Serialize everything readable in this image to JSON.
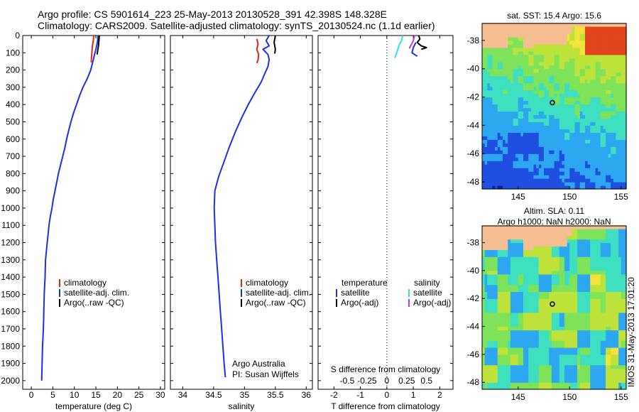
{
  "header": {
    "line1": "Argo profile: CS 5901614_223 25-May-2013 20130528_391 42.398S 148.328E",
    "line2": "Climatology: CARS2009. Satellite-adjusted climatology: synTS_20130524.nc (1.1d earlier)"
  },
  "timestamp": "IMOS 31-May-2013 17:01:20",
  "colors": {
    "climatology": "#e8211b",
    "satellite": "#1e2ee6",
    "argo": "#000000",
    "sal_satellite": "#35e0e6",
    "sal_argo": "#c23ad8",
    "land": "#f6bf92"
  },
  "chart_data": [
    {
      "type": "line",
      "panel": "temperature",
      "xlabel": "temperature (deg C)",
      "xlim": [
        -2,
        31
      ],
      "xticks": [
        0,
        5,
        10,
        15,
        20,
        25,
        30
      ],
      "ylim": [
        2050,
        0
      ],
      "yticks": [
        0,
        100,
        200,
        300,
        400,
        500,
        600,
        700,
        800,
        900,
        1000,
        1100,
        1200,
        1300,
        1400,
        1500,
        1600,
        1700,
        1800,
        1900,
        2000
      ],
      "legend": [
        "climatology",
        "satellite-adj. clim.",
        "Argo(..raw -QC)"
      ],
      "series": [
        {
          "name": "climatology",
          "color": "#e8211b",
          "points": [
            [
              14.5,
              0
            ],
            [
              14.4,
              30
            ],
            [
              14.2,
              60
            ],
            [
              14.1,
              90
            ],
            [
              14.0,
              120
            ],
            [
              13.9,
              155
            ]
          ]
        },
        {
          "name": "satellite-adj. clim.",
          "color": "#1e2ee6",
          "points": [
            [
              15.5,
              0
            ],
            [
              15.4,
              30
            ],
            [
              15.2,
              60
            ],
            [
              14.9,
              90
            ],
            [
              14.6,
              120
            ],
            [
              14.2,
              160
            ],
            [
              13.8,
              200
            ],
            [
              13.0,
              250
            ],
            [
              12.0,
              300
            ],
            [
              11.2,
              350
            ],
            [
              10.5,
              400
            ],
            [
              9.8,
              450
            ],
            [
              9.2,
              500
            ],
            [
              8.7,
              550
            ],
            [
              8.2,
              600
            ],
            [
              7.8,
              650
            ],
            [
              7.3,
              700
            ],
            [
              6.8,
              750
            ],
            [
              6.3,
              800
            ],
            [
              5.9,
              850
            ],
            [
              5.5,
              900
            ],
            [
              5.1,
              950
            ],
            [
              4.8,
              1000
            ],
            [
              4.4,
              1050
            ],
            [
              4.1,
              1100
            ],
            [
              3.9,
              1150
            ],
            [
              3.7,
              1200
            ],
            [
              3.5,
              1250
            ],
            [
              3.3,
              1300
            ],
            [
              3.2,
              1400
            ],
            [
              3.0,
              1500
            ],
            [
              2.9,
              1600
            ],
            [
              2.8,
              1700
            ],
            [
              2.6,
              1800
            ],
            [
              2.5,
              1900
            ],
            [
              2.4,
              2000
            ]
          ]
        },
        {
          "name": "Argo(..raw -QC)",
          "color": "#000000",
          "points": [
            [
              15.8,
              0
            ],
            [
              15.7,
              30
            ],
            [
              15.6,
              60
            ],
            [
              15.4,
              90
            ],
            [
              15.3,
              110
            ]
          ]
        }
      ]
    },
    {
      "type": "line",
      "panel": "salinity",
      "xlabel": "salinity",
      "xlim": [
        33.8,
        36.1
      ],
      "xticks": [
        34,
        34.5,
        35,
        35.5,
        36
      ],
      "ylim": [
        2050,
        0
      ],
      "legend": [
        "climatology",
        "satellite-adj. clim.",
        "Argo(..raw -QC)"
      ],
      "annotation": [
        "Argo Australia",
        "PI: Susan Wijffels"
      ],
      "series": [
        {
          "name": "climatology",
          "color": "#e8211b",
          "points": [
            [
              35.2,
              20
            ],
            [
              35.22,
              50
            ],
            [
              35.2,
              80
            ],
            [
              35.23,
              110
            ],
            [
              35.22,
              140
            ],
            [
              35.2,
              160
            ]
          ]
        },
        {
          "name": "satellite-adj. clim.",
          "color": "#1e2ee6",
          "points": [
            [
              35.4,
              0
            ],
            [
              35.35,
              30
            ],
            [
              35.4,
              60
            ],
            [
              35.3,
              80
            ],
            [
              35.38,
              110
            ],
            [
              35.4,
              140
            ],
            [
              35.38,
              180
            ],
            [
              35.33,
              220
            ],
            [
              35.27,
              270
            ],
            [
              35.17,
              330
            ],
            [
              35.06,
              400
            ],
            [
              34.95,
              480
            ],
            [
              34.85,
              560
            ],
            [
              34.75,
              650
            ],
            [
              34.65,
              750
            ],
            [
              34.58,
              820
            ],
            [
              34.52,
              900
            ],
            [
              34.51,
              1000
            ],
            [
              34.52,
              1100
            ],
            [
              34.53,
              1200
            ],
            [
              34.55,
              1300
            ],
            [
              34.57,
              1400
            ],
            [
              34.59,
              1500
            ],
            [
              34.61,
              1600
            ],
            [
              34.63,
              1700
            ],
            [
              34.65,
              1800
            ],
            [
              34.67,
              1900
            ],
            [
              34.69,
              1980
            ]
          ]
        },
        {
          "name": "Argo(..raw -QC)",
          "color": "#000000",
          "points": [
            [
              35.5,
              0
            ],
            [
              35.48,
              40
            ],
            [
              35.5,
              80
            ],
            [
              35.49,
              105
            ]
          ]
        }
      ]
    },
    {
      "type": "line",
      "panel": "difference",
      "xlabel": "T difference from climatology",
      "xlabel2": "S difference from climatology",
      "xlim": [
        -2.6,
        2.5
      ],
      "xticks": [
        -2,
        -1,
        0,
        1,
        2
      ],
      "sticks": [
        {
          "v": -0.5,
          "label": "-0.5"
        },
        {
          "v": -0.25,
          "label": "-0.25"
        },
        {
          "v": 0,
          "label": "0"
        },
        {
          "v": 0.25,
          "label": "0.25"
        },
        {
          "v": 0.5,
          "label": "0.5"
        }
      ],
      "ylim": [
        2050,
        0
      ],
      "legend_t": {
        "title": "temperature",
        "items": [
          "satellite",
          "Argo(-adj)"
        ]
      },
      "legend_s": {
        "title": "salinity",
        "items": [
          "satellite",
          "Argo(-adj)"
        ]
      },
      "series": [
        {
          "name": "satellite",
          "group": "temperature",
          "color": "#1e2ee6",
          "points": [
            [
              1.1,
              40
            ],
            [
              1.0,
              70
            ],
            [
              0.95,
              100
            ],
            [
              1.15,
              120
            ]
          ]
        },
        {
          "name": "Argo(-adj)",
          "group": "temperature",
          "color": "#000000",
          "points": [
            [
              1.2,
              0
            ],
            [
              1.25,
              20
            ],
            [
              1.15,
              40
            ],
            [
              1.3,
              60
            ],
            [
              1.5,
              70
            ],
            [
              1.3,
              80
            ]
          ]
        },
        {
          "name": "satellite",
          "group": "salinity",
          "color": "#35e0e6",
          "points": [
            [
              0.6,
              0
            ],
            [
              0.55,
              30
            ],
            [
              0.45,
              60
            ],
            [
              0.42,
              80
            ],
            [
              0.35,
              110
            ],
            [
              0.3,
              130
            ]
          ]
        },
        {
          "name": "Argo(-adj)",
          "group": "salinity",
          "color": "#c23ad8",
          "points": [
            [
              1.05,
              0
            ],
            [
              1.0,
              30
            ],
            [
              0.9,
              60
            ],
            [
              0.85,
              75
            ]
          ]
        }
      ]
    },
    {
      "type": "heatmap",
      "panel": "sst-map",
      "title": "sat. SST: 15.4  Argo: 15.6",
      "xlim": [
        141.5,
        155.5
      ],
      "ylim": [
        -48.5,
        -36.8
      ],
      "xticks": [
        145,
        150,
        155
      ],
      "yticks": [
        -38,
        -40,
        -42,
        -44,
        -46,
        -48
      ],
      "profile_location": [
        148.328,
        -42.398
      ]
    },
    {
      "type": "heatmap",
      "panel": "sla-map",
      "title": "Altim. SLA: 0.11",
      "subtitle": "Argo h1000: NaN h2000: NaN",
      "xlim": [
        141.5,
        155.5
      ],
      "ylim": [
        -48.5,
        -36.8
      ],
      "xticks": [
        145,
        150,
        155
      ],
      "yticks": [
        -38,
        -40,
        -42,
        -44,
        -46,
        -48
      ],
      "profile_location": [
        148.328,
        -42.398
      ]
    }
  ]
}
